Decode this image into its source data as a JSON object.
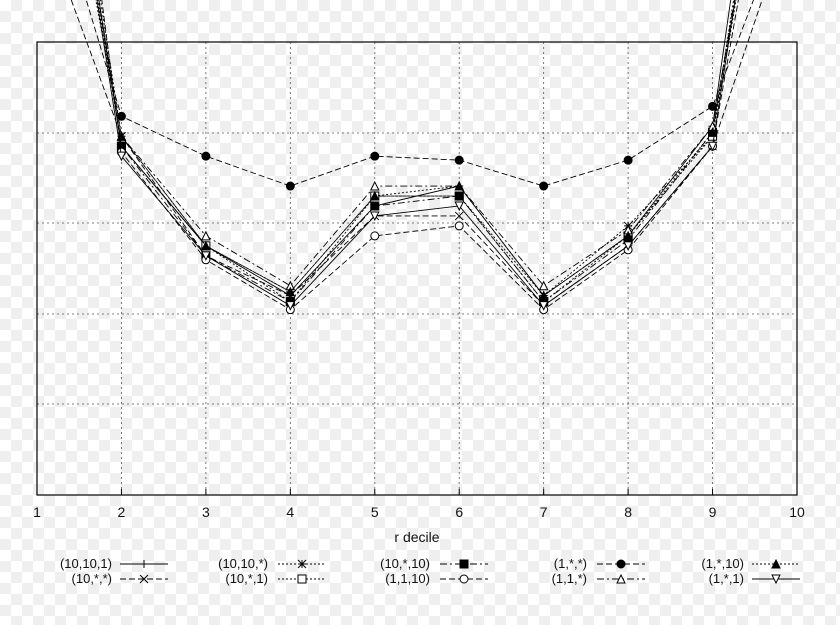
{
  "chart_data": {
    "type": "line",
    "xlabel": "r decile",
    "ylabel": "",
    "title": "",
    "x": [
      1,
      2,
      3,
      4,
      5,
      6,
      7,
      8,
      9,
      10
    ],
    "xtick_labels": [
      "1",
      "2",
      "3",
      "4",
      "5",
      "6",
      "7",
      "8",
      "9",
      "10"
    ],
    "xlim": [
      1,
      10
    ],
    "ylim": [
      0,
      1
    ],
    "grid": true,
    "legend_position": "bottom",
    "series": [
      {
        "name": "(10,10,1)",
        "style": "solid",
        "marker": "plus",
        "values": [
          0.45,
          0.175,
          0.125,
          0.1,
          0.145,
          0.155,
          0.1,
          0.13,
          0.185,
          0.48
        ]
      },
      {
        "name": "(10,*,*)",
        "style": "dashed",
        "marker": "cross",
        "values": [
          0.295,
          0.18,
          0.12,
          0.1,
          0.14,
          0.14,
          0.095,
          0.125,
          0.175,
          0.3
        ]
      },
      {
        "name": "(10,10,*)",
        "style": "dotted",
        "marker": "asterisk",
        "values": [
          0.405,
          0.18,
          0.125,
          0.102,
          0.15,
          0.15,
          0.1,
          0.135,
          0.18,
          0.425
        ]
      },
      {
        "name": "(10,*,1)",
        "style": "dotted",
        "marker": "square-open",
        "values": [
          0.435,
          0.175,
          0.125,
          0.097,
          0.15,
          0.15,
          0.097,
          0.13,
          0.18,
          0.455
        ]
      },
      {
        "name": "(10,*,10)",
        "style": "dashdot",
        "marker": "square-filled",
        "values": [
          0.445,
          0.175,
          0.12,
          0.097,
          0.145,
          0.15,
          0.097,
          0.128,
          0.182,
          0.44
        ]
      },
      {
        "name": "(1,1,10)",
        "style": "dashed",
        "marker": "circle-open",
        "values": [
          0.5,
          0.172,
          0.118,
          0.093,
          0.13,
          0.135,
          0.093,
          0.123,
          0.175,
          0.415
        ]
      },
      {
        "name": "(1,*,*)",
        "style": "dashed",
        "marker": "circle-filled",
        "values": [
          0.33,
          0.19,
          0.17,
          0.155,
          0.17,
          0.168,
          0.155,
          0.168,
          0.195,
          0.305
        ]
      },
      {
        "name": "(1,1,*)",
        "style": "dashdot",
        "marker": "triangle-up-open",
        "values": [
          0.435,
          0.18,
          0.13,
          0.105,
          0.155,
          0.155,
          0.105,
          0.133,
          0.185,
          0.42
        ]
      },
      {
        "name": "(1,*,10)",
        "style": "dotted",
        "marker": "triangle-up-filled",
        "values": [
          0.455,
          0.18,
          0.125,
          0.102,
          0.15,
          0.155,
          0.1,
          0.13,
          0.182,
          0.43
        ]
      },
      {
        "name": "(1,*,1)",
        "style": "solid",
        "marker": "triangle-down-open",
        "values": [
          0.44,
          0.17,
          0.12,
          0.095,
          0.14,
          0.145,
          0.095,
          0.125,
          0.175,
          0.45
        ]
      }
    ]
  }
}
